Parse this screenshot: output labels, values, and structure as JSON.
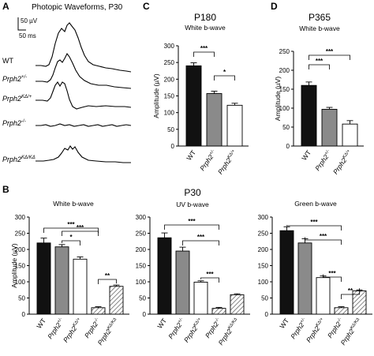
{
  "panels": {
    "A": {
      "letter": "A",
      "title": "Photopic Waveforms, P30",
      "scale_uv": "50 µV",
      "scale_ms": "50 ms",
      "traces": [
        {
          "label": "WT",
          "italic": false,
          "sup": ""
        },
        {
          "label": "Prph2",
          "italic": true,
          "sup": "+/-"
        },
        {
          "label": "Prph2",
          "italic": true,
          "sup": "KΔ/+"
        },
        {
          "label": "Prph2",
          "italic": true,
          "sup": "-/-"
        },
        {
          "label": "Prph2",
          "italic": true,
          "sup": "KΔ/KΔ"
        }
      ]
    },
    "B": {
      "letter": "B"
    },
    "C": {
      "letter": "C"
    },
    "D": {
      "letter": "D"
    }
  },
  "colors": {
    "black": "#111111",
    "gray": "#8a8a8a",
    "white": "#ffffff",
    "hatch": "#555555"
  },
  "chart_data": [
    {
      "id": "C",
      "type": "bar",
      "title": "P180",
      "subtitle": "White b-wave",
      "ylabel": "Amplitude (µV)",
      "ylim": [
        0,
        300
      ],
      "yticks": [
        0,
        50,
        100,
        150,
        200,
        250,
        300
      ],
      "categories": [
        {
          "label": "WT",
          "italic": false,
          "sup": ""
        },
        {
          "label": "Prph2",
          "italic": true,
          "sup": "+/-"
        },
        {
          "label": "Prph2",
          "italic": true,
          "sup": "KΔ/+"
        }
      ],
      "values": [
        240,
        157,
        122
      ],
      "errors": [
        9,
        7,
        6
      ],
      "fills": [
        "black",
        "gray",
        "white"
      ],
      "brackets": [
        {
          "from": 0,
          "to": 1,
          "label": "***"
        },
        {
          "from": 1,
          "to": 2,
          "label": "*"
        }
      ]
    },
    {
      "id": "D",
      "type": "bar",
      "title": "P365",
      "subtitle": "White b-wave",
      "ylabel": "Amplitude (µV)",
      "ylim": [
        0,
        250
      ],
      "yticks": [
        0,
        50,
        100,
        150,
        200,
        250
      ],
      "categories": [
        {
          "label": "WT",
          "italic": false,
          "sup": ""
        },
        {
          "label": "Prph2",
          "italic": true,
          "sup": "+/-"
        },
        {
          "label": "Prph2",
          "italic": true,
          "sup": "KΔ/+"
        }
      ],
      "values": [
        160,
        97,
        58
      ],
      "errors": [
        9,
        5,
        9
      ],
      "fills": [
        "black",
        "gray",
        "white"
      ],
      "brackets": [
        {
          "from": 0,
          "to": 1,
          "label": "***"
        },
        {
          "from": 0,
          "to": 2,
          "label": "***"
        }
      ]
    },
    {
      "id": "B1",
      "type": "bar",
      "title": "",
      "subtitle": "White b-wave",
      "ylabel": "Amplitude (µV)",
      "ylim": [
        0,
        300
      ],
      "yticks": [
        0,
        50,
        100,
        150,
        200,
        250,
        300
      ],
      "categories": [
        {
          "label": "WT",
          "italic": false,
          "sup": ""
        },
        {
          "label": "Prph2",
          "italic": true,
          "sup": "+/-"
        },
        {
          "label": "Prph2",
          "italic": true,
          "sup": "KΔ/+"
        },
        {
          "label": "Prph2",
          "italic": true,
          "sup": "-/-"
        },
        {
          "label": "Prph2",
          "italic": true,
          "sup": "KΔ/KΔ"
        }
      ],
      "values": [
        220,
        208,
        170,
        20,
        86
      ],
      "errors": [
        15,
        7,
        7,
        3,
        4
      ],
      "fills": [
        "black",
        "gray",
        "white",
        "hatch",
        "hatch"
      ],
      "brackets": [
        {
          "from": 0,
          "to": 3,
          "label": "***"
        },
        {
          "from": 1,
          "to": 2,
          "label": "*"
        },
        {
          "from": 1,
          "to": 3,
          "label": "***"
        },
        {
          "from": 3,
          "to": 4,
          "label": "**"
        }
      ]
    },
    {
      "id": "B2",
      "type": "bar",
      "title": "P30",
      "subtitle": "UV b-wave",
      "ylabel": "",
      "ylim": [
        0,
        300
      ],
      "yticks": [
        0,
        50,
        100,
        150,
        200,
        250,
        300
      ],
      "categories": [
        {
          "label": "WT",
          "italic": false,
          "sup": ""
        },
        {
          "label": "Prph2",
          "italic": true,
          "sup": "+/-"
        },
        {
          "label": "Prph2",
          "italic": true,
          "sup": "KΔ/+"
        },
        {
          "label": "Prph2",
          "italic": true,
          "sup": "-/-"
        },
        {
          "label": "Prph2",
          "italic": true,
          "sup": "KΔ/KΔ"
        }
      ],
      "values": [
        236,
        195,
        99,
        18,
        60
      ],
      "errors": [
        15,
        12,
        4,
        3,
        3
      ],
      "fills": [
        "black",
        "gray",
        "white",
        "hatch",
        "hatch"
      ],
      "brackets": [
        {
          "from": 0,
          "to": 3,
          "label": "***"
        },
        {
          "from": 1,
          "to": 3,
          "label": "***"
        },
        {
          "from": 2,
          "to": 3,
          "label": "***"
        }
      ]
    },
    {
      "id": "B3",
      "type": "bar",
      "title": "",
      "subtitle": "Green b-wave",
      "ylabel": "",
      "ylim": [
        0,
        300
      ],
      "yticks": [
        0,
        50,
        100,
        150,
        200,
        250,
        300
      ],
      "categories": [
        {
          "label": "WT",
          "italic": false,
          "sup": ""
        },
        {
          "label": "Prph2",
          "italic": true,
          "sup": "+/-"
        },
        {
          "label": "Prph2",
          "italic": true,
          "sup": "KΔ/+"
        },
        {
          "label": "Prph2",
          "italic": true,
          "sup": "-/-"
        },
        {
          "label": "Prph2",
          "italic": true,
          "sup": "KΔ/KΔ"
        }
      ],
      "values": [
        258,
        220,
        113,
        20,
        72
      ],
      "errors": [
        12,
        13,
        5,
        3,
        3
      ],
      "fills": [
        "black",
        "gray",
        "white",
        "hatch",
        "hatch"
      ],
      "brackets": [
        {
          "from": 0,
          "to": 3,
          "label": "***"
        },
        {
          "from": 1,
          "to": 3,
          "label": "***"
        },
        {
          "from": 2,
          "to": 3,
          "label": "***"
        },
        {
          "from": 3,
          "to": 4,
          "label": "**"
        }
      ]
    }
  ]
}
